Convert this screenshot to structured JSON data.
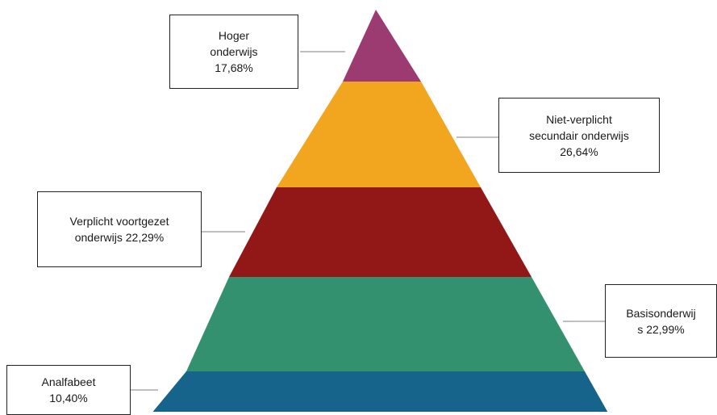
{
  "diagram": {
    "layers": [
      {
        "id": "hoger",
        "lines": [
          "Hoger",
          "onderwijs",
          "17,68%"
        ],
        "color": "#9c3a72"
      },
      {
        "id": "nietverplicht",
        "lines": [
          "Niet-verplicht",
          "secundair onderwijs",
          "26,64%"
        ],
        "color": "#f2a51f"
      },
      {
        "id": "verplicht",
        "lines": [
          "Verplicht voortgezet",
          "onderwijs 22,29%"
        ],
        "color": "#921717"
      },
      {
        "id": "basis",
        "lines": [
          "Basisonderwij",
          "s 22,99%"
        ],
        "color": "#339170"
      },
      {
        "id": "analfabeet",
        "lines": [
          "Analfabeet",
          "10,40%"
        ],
        "color": "#16648b"
      }
    ],
    "connector_color": "#bfbfbf"
  }
}
